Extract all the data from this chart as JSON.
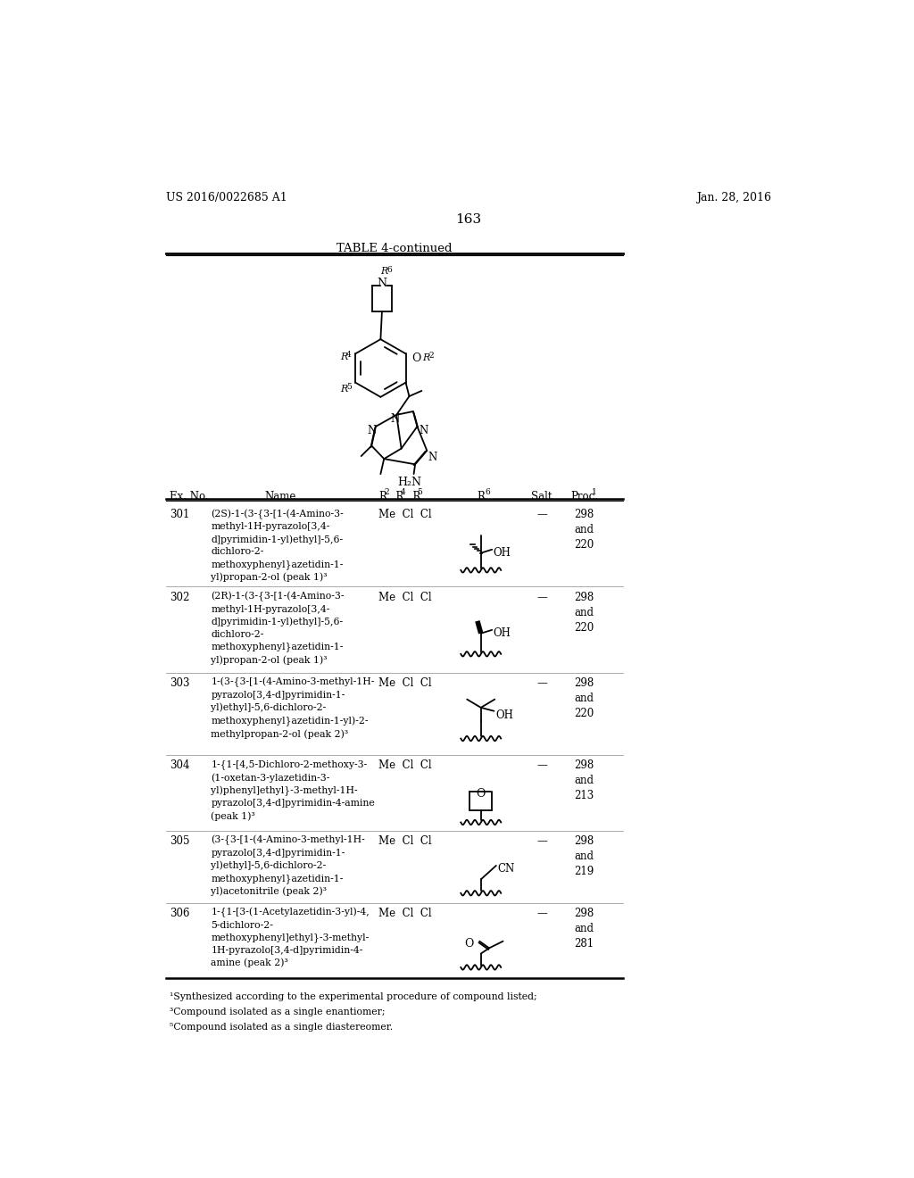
{
  "page_header_left": "US 2016/0022685 A1",
  "page_header_right": "Jan. 28, 2016",
  "page_number": "163",
  "table_title": "TABLE 4-continued",
  "footnotes": [
    "¹Synthesized according to the experimental procedure of compound listed;",
    "³Compound isolated as a single enantiomer;",
    "⁵Compound isolated as a single diastereomer."
  ],
  "rows": [
    {
      "ex_no": "301",
      "name": "(2S)-1-(3-{3-[1-(4-Amino-3-\nmethyl-1H-pyrazolo[3,4-\nd]pyrimidin-1-yl)ethyl]-5,6-\ndichloro-2-\nmethoxyphenyl}azetidin-1-\nyl)propan-2-ol (peak 1)³",
      "r245": "Me  Cl  Cl",
      "r6_type": "propanol_S",
      "salt": "—",
      "proc": "298\nand\n220"
    },
    {
      "ex_no": "302",
      "name": "(2R)-1-(3-{3-[1-(4-Amino-3-\nmethyl-1H-pyrazolo[3,4-\nd]pyrimidin-1-yl)ethyl]-5,6-\ndichloro-2-\nmethoxyphenyl}azetidin-1-\nyl)propan-2-ol (peak 1)³",
      "r245": "Me  Cl  Cl",
      "r6_type": "propanol_R",
      "salt": "—",
      "proc": "298\nand\n220"
    },
    {
      "ex_no": "303",
      "name": "1-(3-{3-[1-(4-Amino-3-methyl-1H-\npyrazolo[3,4-d]pyrimidin-1-\nyl)ethyl]-5,6-dichloro-2-\nmethoxyphenyl}azetidin-1-yl)-2-\nmethylpropan-2-ol (peak 2)³",
      "r245": "Me  Cl  Cl",
      "r6_type": "methylpropanol",
      "salt": "—",
      "proc": "298\nand\n220"
    },
    {
      "ex_no": "304",
      "name": "1-{1-[4,5-Dichloro-2-methoxy-3-\n(1-oxetan-3-ylazetidin-3-\nyl)phenyl]ethyl}-3-methyl-1H-\npyrazolo[3,4-d]pyrimidin-4-amine\n(peak 1)³",
      "r245": "Me  Cl  Cl",
      "r6_type": "oxetane",
      "salt": "—",
      "proc": "298\nand\n213"
    },
    {
      "ex_no": "305",
      "name": "(3-{3-[1-(4-Amino-3-methyl-1H-\npyrazolo[3,4-d]pyrimidin-1-\nyl)ethyl]-5,6-dichloro-2-\nmethoxyphenyl}azetidin-1-\nyl)acetonitrile (peak 2)³",
      "r245": "Me  Cl  Cl",
      "r6_type": "acetonitrile",
      "salt": "—",
      "proc": "298\nand\n219"
    },
    {
      "ex_no": "306",
      "name": "1-{1-[3-(1-Acetylazetidin-3-yl)-4,\n5-dichloro-2-\nmethoxyphenyl]ethyl}-3-methyl-\n1H-pyrazolo[3,4-d]pyrimidin-4-\namine (peak 2)³",
      "r245": "Me  Cl  Cl",
      "r6_type": "acetyl",
      "salt": "—",
      "proc": "298\nand\n281"
    }
  ]
}
